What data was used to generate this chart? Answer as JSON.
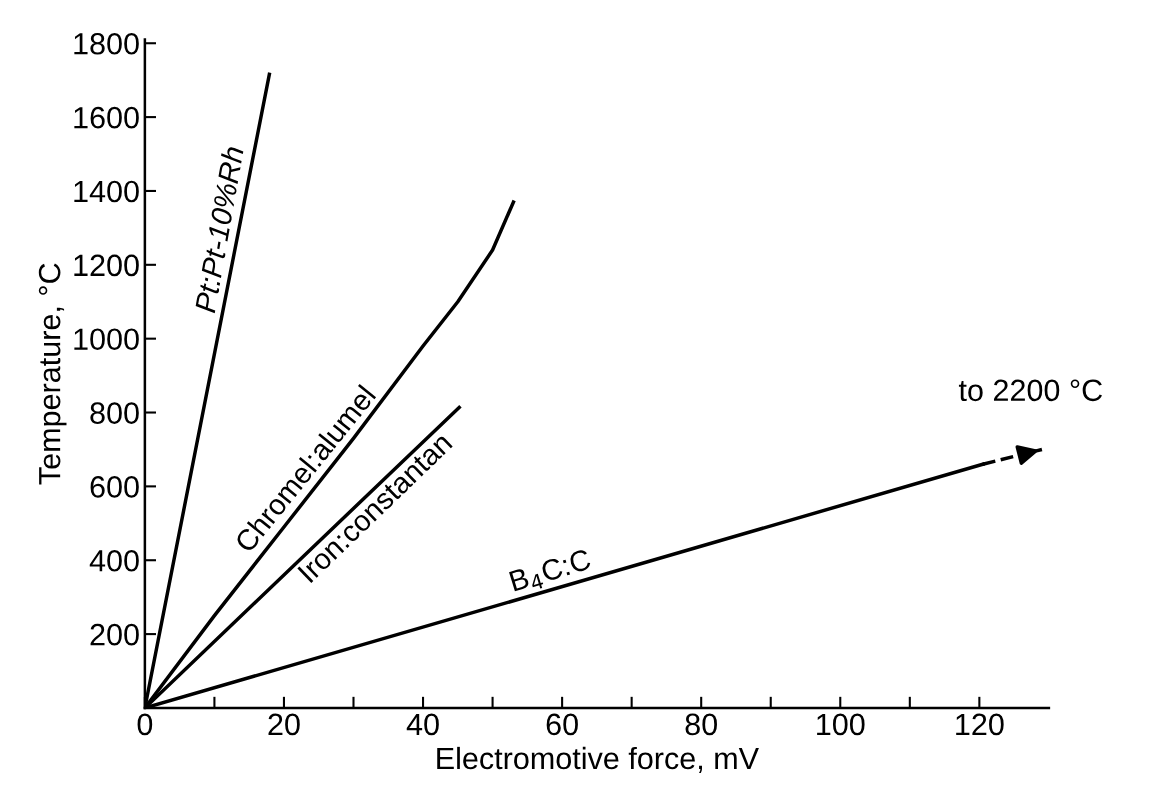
{
  "chart_data": {
    "type": "line",
    "xlabel": "Electromotive force, mV",
    "ylabel": "Temperature, °C",
    "xlim": [
      0,
      130
    ],
    "ylim": [
      0,
      1810
    ],
    "xticks": [
      0,
      {
        "value": 10,
        "label": null
      },
      20,
      {
        "value": 30,
        "label": null
      },
      40,
      {
        "value": 50,
        "label": null
      },
      60,
      {
        "value": 70,
        "label": null
      },
      80,
      {
        "value": 90,
        "label": null
      },
      100,
      {
        "value": 110,
        "label": null
      },
      120
    ],
    "yticks": [
      200,
      400,
      600,
      800,
      1000,
      1200,
      1400,
      1600,
      1800
    ],
    "grid": false,
    "legend": false,
    "marker": "none",
    "series": [
      {
        "name": "Pt:Pt-10%Rh",
        "color": "#000000",
        "x": [
          0,
          17.9
        ],
        "values": [
          0,
          1716
        ]
      },
      {
        "name": "Chromel:alumel",
        "color": "#000000",
        "x": [
          0,
          10,
          20,
          30,
          40,
          45,
          50,
          53
        ],
        "values": [
          0,
          250,
          490,
          730,
          980,
          1100,
          1240,
          1370
        ]
      },
      {
        "name": "Iron:constantan",
        "color": "#000000",
        "x": [
          0,
          45.2
        ],
        "values": [
          0,
          814
        ]
      },
      {
        "name": "B$_{4}$C:C",
        "color": "#000000",
        "x": [
          0,
          120.5
        ],
        "values": [
          0,
          660
        ]
      },
      {
        "color": "#000000",
        "line_style": "dashed",
        "x": [
          120.5,
          129
        ],
        "values": [
          660,
          700
        ]
      }
    ],
    "annotations": [
      {
        "text": "to 2200 °C",
        "x": 129,
        "y": 700
      }
    ]
  }
}
